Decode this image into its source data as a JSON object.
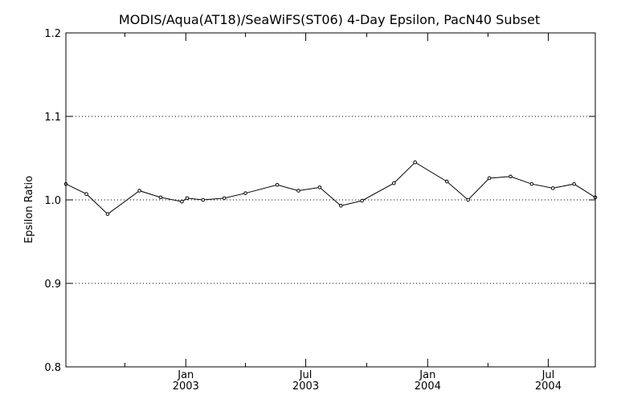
{
  "chart_data": {
    "type": "line",
    "title": "MODIS/Aqua(AT18)/SeaWiFS(ST06) 4-Day Epsilon, PacN40 Subset",
    "xlabel": "",
    "ylabel": "Epsilon Ratio",
    "ylim": [
      0.8,
      1.2
    ],
    "xlim": [
      "2002-07-04",
      "2004-09-10"
    ],
    "y_ticks": [
      "0.8",
      "0.9",
      "1.0",
      "1.1",
      "1.2"
    ],
    "y_gridlines": [
      0.9,
      1.0,
      1.1
    ],
    "x_major_ticks": [
      {
        "date": "2003-01-01",
        "month": "Jan",
        "year": "2003"
      },
      {
        "date": "2003-07-01",
        "month": "Jul",
        "year": "2003"
      },
      {
        "date": "2004-01-01",
        "month": "Jan",
        "year": "2004"
      },
      {
        "date": "2004-07-01",
        "month": "Jul",
        "year": "2004"
      }
    ],
    "x_minor_ticks": [
      "2002-10-01",
      "2003-04-01",
      "2003-10-01",
      "2004-04-01"
    ],
    "grid": "horizontal dotted",
    "series": [
      {
        "color": "#000000",
        "points": [
          {
            "x": "2002-07-04",
            "y": 1.019
          },
          {
            "x": "2002-08-04",
            "y": 1.007
          },
          {
            "x": "2002-09-05",
            "y": 0.983
          },
          {
            "x": "2002-10-23",
            "y": 1.011
          },
          {
            "x": "2002-11-24",
            "y": 1.003
          },
          {
            "x": "2002-12-26",
            "y": 0.998
          },
          {
            "x": "2003-01-03",
            "y": 1.002
          },
          {
            "x": "2003-01-27",
            "y": 1.0
          },
          {
            "x": "2003-02-28",
            "y": 1.002
          },
          {
            "x": "2003-04-01",
            "y": 1.008
          },
          {
            "x": "2003-05-19",
            "y": 1.018
          },
          {
            "x": "2003-06-20",
            "y": 1.011
          },
          {
            "x": "2003-07-22",
            "y": 1.015
          },
          {
            "x": "2003-08-23",
            "y": 0.993
          },
          {
            "x": "2003-09-24",
            "y": 0.999
          },
          {
            "x": "2003-11-11",
            "y": 1.02
          },
          {
            "x": "2003-12-13",
            "y": 1.045
          },
          {
            "x": "2004-01-30",
            "y": 1.022
          },
          {
            "x": "2004-03-02",
            "y": 1.0
          },
          {
            "x": "2004-04-03",
            "y": 1.026
          },
          {
            "x": "2004-05-05",
            "y": 1.028
          },
          {
            "x": "2004-06-06",
            "y": 1.019
          },
          {
            "x": "2004-07-08",
            "y": 1.014
          },
          {
            "x": "2004-08-09",
            "y": 1.019
          },
          {
            "x": "2004-09-10",
            "y": 1.003
          }
        ]
      }
    ]
  }
}
